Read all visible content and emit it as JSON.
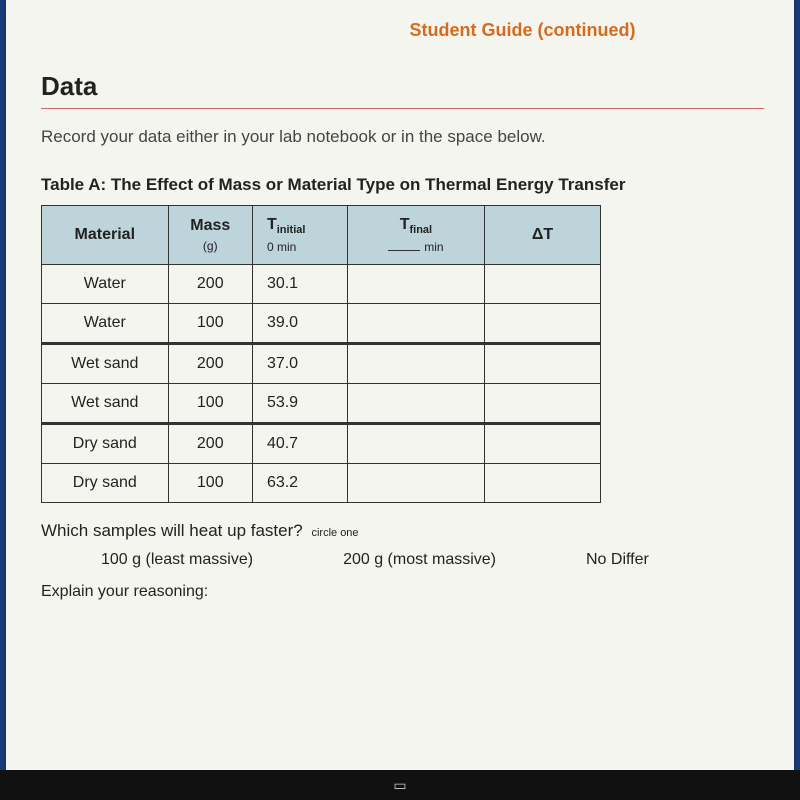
{
  "header": {
    "title": "Student Guide (continued)"
  },
  "section": {
    "title": "Data"
  },
  "instruction": "Record your data either in your lab notebook or in the space below.",
  "table": {
    "caption": "Table A: The Effect of Mass or Material Type on Thermal Energy Transfer",
    "columns": {
      "material": "Material",
      "mass": "Mass",
      "mass_unit": "(g)",
      "t_initial": "T",
      "t_initial_sub": "initial",
      "t_initial_sub2": "0 min",
      "t_final": "T",
      "t_final_sub": "final",
      "t_final_sub2": "min",
      "delta_t": "ΔT"
    },
    "rows": [
      {
        "material": "Water",
        "mass": "200",
        "t_init": "30.1",
        "t_final": "",
        "dt": ""
      },
      {
        "material": "Water",
        "mass": "100",
        "t_init": "39.0",
        "t_final": "",
        "dt": ""
      },
      {
        "material": "Wet sand",
        "mass": "200",
        "t_init": "37.0",
        "t_final": "",
        "dt": ""
      },
      {
        "material": "Wet sand",
        "mass": "100",
        "t_init": "53.9",
        "t_final": "",
        "dt": ""
      },
      {
        "material": "Dry sand",
        "mass": "200",
        "t_init": "40.7",
        "t_final": "",
        "dt": ""
      },
      {
        "material": "Dry sand",
        "mass": "100",
        "t_init": "63.2",
        "t_final": "",
        "dt": ""
      }
    ]
  },
  "question": {
    "prompt": "Which samples will heat up faster?",
    "circle_hint": "circle one",
    "options": [
      "100 g (least massive)",
      "200 g (most massive)",
      "No Differ"
    ],
    "explain_label": "Explain your reasoning:"
  },
  "colors": {
    "header_text": "#d66b1e",
    "th_bg": "#bcd4da",
    "page_bg": "#f5f5f0",
    "outer_bg": "#1a3a7a",
    "divider": "#c66"
  }
}
